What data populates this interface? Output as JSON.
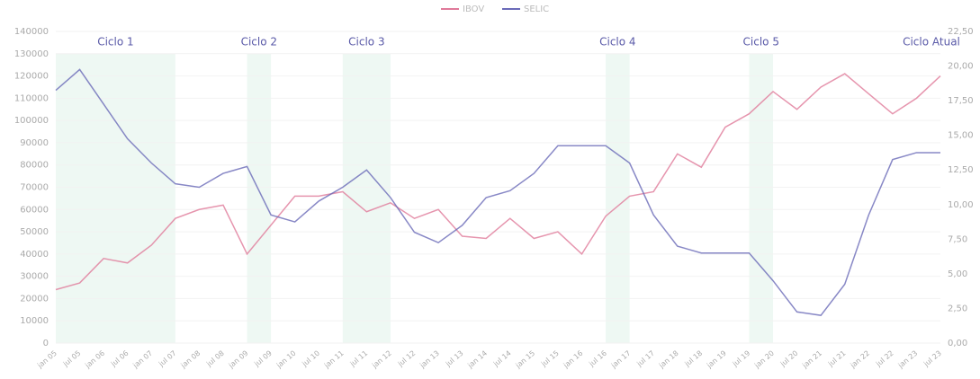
{
  "chart_data": {
    "type": "line",
    "categories": [
      "jan 05",
      "jul 05",
      "jan 06",
      "jul 06",
      "jan 07",
      "jul 07",
      "jan 08",
      "jul 08",
      "jan 09",
      "jul 09",
      "jan 10",
      "jul 10",
      "jan 11",
      "jul 11",
      "jan 12",
      "jul 12",
      "jan 13",
      "jul 13",
      "jan 14",
      "jul 14",
      "jan 15",
      "jul 15",
      "jan 16",
      "jul 16",
      "jan 17",
      "jul 17",
      "jan 18",
      "jul 18",
      "jan 19",
      "jul 19",
      "jan 20",
      "jul 20",
      "jan 21",
      "jul 21",
      "jan 22",
      "jul 22",
      "jan 23",
      "jul 23"
    ],
    "series": [
      {
        "name": "IBOV",
        "color": "#e07a9a",
        "values": [
          24000,
          27000,
          38000,
          36000,
          44000,
          56000,
          60000,
          62000,
          40000,
          53000,
          66000,
          66000,
          68000,
          59000,
          63000,
          56000,
          60000,
          48000,
          47000,
          56000,
          47000,
          50000,
          40000,
          57000,
          66000,
          68000,
          85000,
          79000,
          97000,
          103000,
          113000,
          105000,
          115000,
          121000,
          112000,
          103000,
          110000,
          120000
        ]
      },
      {
        "name": "SELIC",
        "color": "#6a6ab8",
        "axis": "y2",
        "values": [
          18.25,
          19.75,
          17.25,
          14.75,
          13.0,
          11.5,
          11.25,
          12.25,
          12.75,
          9.25,
          8.75,
          10.25,
          11.25,
          12.5,
          10.5,
          8.0,
          7.25,
          8.5,
          10.5,
          11.0,
          12.25,
          14.25,
          14.25,
          14.25,
          13.0,
          9.25,
          7.0,
          6.5,
          6.5,
          6.5,
          4.5,
          2.25,
          2.0,
          4.25,
          9.25,
          13.25,
          13.75,
          13.75
        ]
      }
    ],
    "annotations": [
      {
        "text": "Ciclo 1",
        "start": 0,
        "end": 5
      },
      {
        "text": "Ciclo 2",
        "start": 8,
        "end": 9
      },
      {
        "text": "Ciclo 3",
        "start": 12,
        "end": 14
      },
      {
        "text": "Ciclo 4",
        "start": 23,
        "end": 24
      },
      {
        "text": "Ciclo 5",
        "start": 29,
        "end": 30
      },
      {
        "text": "Ciclo Atual",
        "start": 37,
        "end": 37
      }
    ],
    "ylim": [
      0,
      140000
    ],
    "yticks": [
      0,
      10000,
      20000,
      30000,
      40000,
      50000,
      60000,
      70000,
      80000,
      90000,
      100000,
      110000,
      120000,
      130000,
      140000
    ],
    "y2lim": [
      0,
      22.5
    ],
    "y2ticks": [
      {
        "value": 0,
        "label": "0,00"
      },
      {
        "value": 2.5,
        "label": "2,50"
      },
      {
        "value": 5,
        "label": "5,00"
      },
      {
        "value": 7.5,
        "label": "7,50"
      },
      {
        "value": 10,
        "label": "10,00"
      },
      {
        "value": 12.5,
        "label": "12,50"
      },
      {
        "value": 15,
        "label": "15,00"
      },
      {
        "value": 17.5,
        "label": "17,50"
      },
      {
        "value": 20,
        "label": "20,00"
      },
      {
        "value": 22.5,
        "label": "22,50"
      }
    ],
    "grid": true
  }
}
